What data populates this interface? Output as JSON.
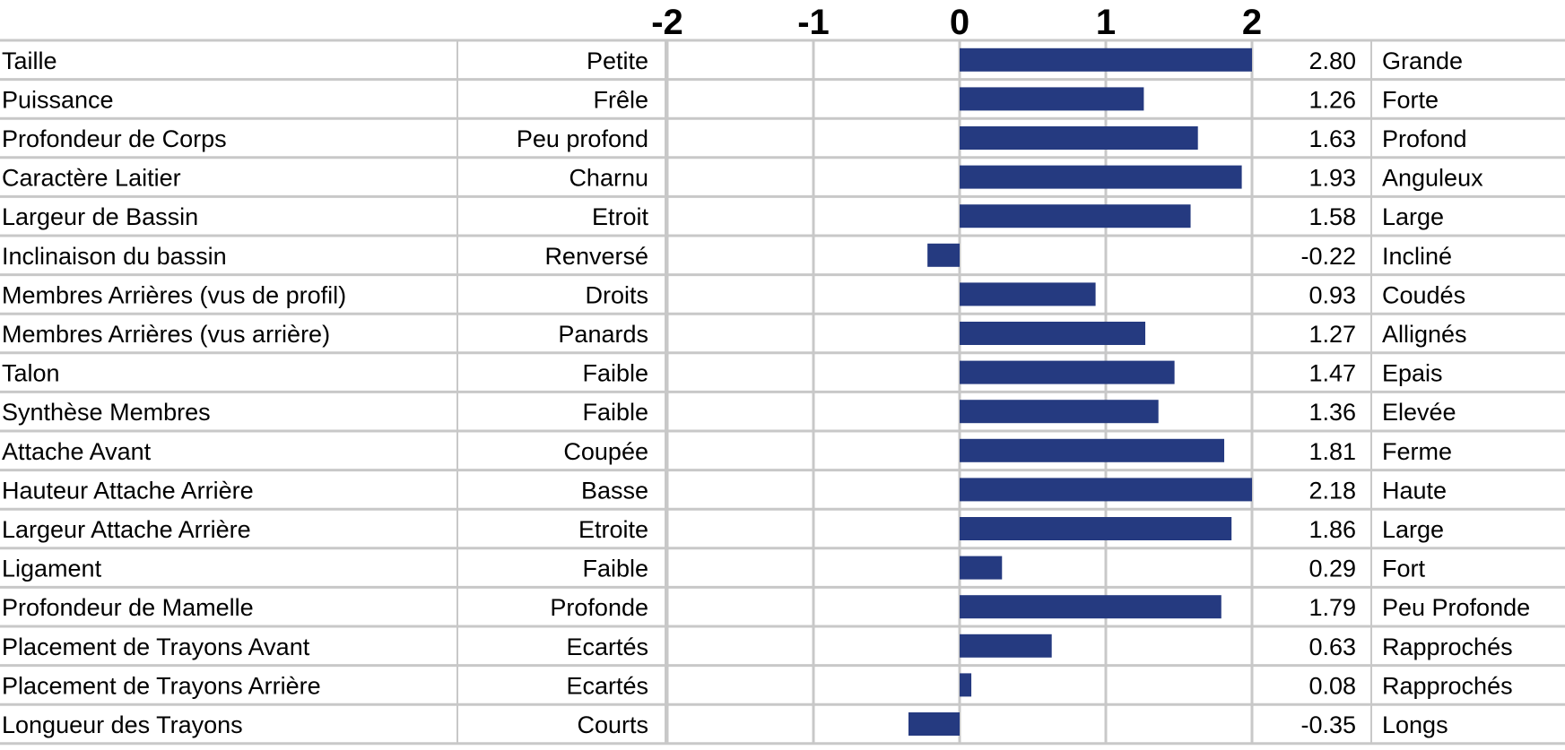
{
  "chart_data": {
    "type": "bar",
    "orientation": "horizontal",
    "xlim": [
      -2,
      2
    ],
    "x_ticks": [
      "-2",
      "-1",
      "0",
      "1",
      "2"
    ],
    "grid": true,
    "bar_color": "#253a80",
    "grid_color": "#c8c8c8",
    "rows": [
      {
        "trait": "Taille",
        "low": "Petite",
        "value": 2.8,
        "value_label": "2.80",
        "high": "Grande"
      },
      {
        "trait": "Puissance",
        "low": "Frêle",
        "value": 1.26,
        "value_label": "1.26",
        "high": "Forte"
      },
      {
        "trait": "Profondeur de Corps",
        "low": "Peu profond",
        "value": 1.63,
        "value_label": "1.63",
        "high": "Profond"
      },
      {
        "trait": "Caractère Laitier",
        "low": "Charnu",
        "value": 1.93,
        "value_label": "1.93",
        "high": "Anguleux"
      },
      {
        "trait": "Largeur de Bassin",
        "low": "Etroit",
        "value": 1.58,
        "value_label": "1.58",
        "high": "Large"
      },
      {
        "trait": "Inclinaison du bassin",
        "low": "Renversé",
        "value": -0.22,
        "value_label": "-0.22",
        "high": "Incliné"
      },
      {
        "trait": "Membres Arrières (vus de profil)",
        "low": "Droits",
        "value": 0.93,
        "value_label": "0.93",
        "high": "Coudés"
      },
      {
        "trait": "Membres Arrières (vus arrière)",
        "low": "Panards",
        "value": 1.27,
        "value_label": "1.27",
        "high": "Allignés"
      },
      {
        "trait": "Talon",
        "low": "Faible",
        "value": 1.47,
        "value_label": "1.47",
        "high": "Epais"
      },
      {
        "trait": "Synthèse Membres",
        "low": "Faible",
        "value": 1.36,
        "value_label": "1.36",
        "high": "Elevée"
      },
      {
        "trait": "Attache Avant",
        "low": "Coupée",
        "value": 1.81,
        "value_label": "1.81",
        "high": "Ferme"
      },
      {
        "trait": "Hauteur Attache Arrière",
        "low": "Basse",
        "value": 2.18,
        "value_label": "2.18",
        "high": "Haute"
      },
      {
        "trait": "Largeur Attache Arrière",
        "low": "Etroite",
        "value": 1.86,
        "value_label": "1.86",
        "high": "Large"
      },
      {
        "trait": "Ligament",
        "low": "Faible",
        "value": 0.29,
        "value_label": "0.29",
        "high": "Fort"
      },
      {
        "trait": "Profondeur de Mamelle",
        "low": "Profonde",
        "value": 1.79,
        "value_label": "1.79",
        "high": "Peu Profonde"
      },
      {
        "trait": "Placement de Trayons Avant",
        "low": "Ecartés",
        "value": 0.63,
        "value_label": "0.63",
        "high": "Rapprochés"
      },
      {
        "trait": "Placement de Trayons Arrière",
        "low": "Ecartés",
        "value": 0.08,
        "value_label": "0.08",
        "high": "Rapprochés"
      },
      {
        "trait": "Longueur des Trayons",
        "low": "Courts",
        "value": -0.35,
        "value_label": "-0.35",
        "high": "Longs"
      }
    ]
  }
}
